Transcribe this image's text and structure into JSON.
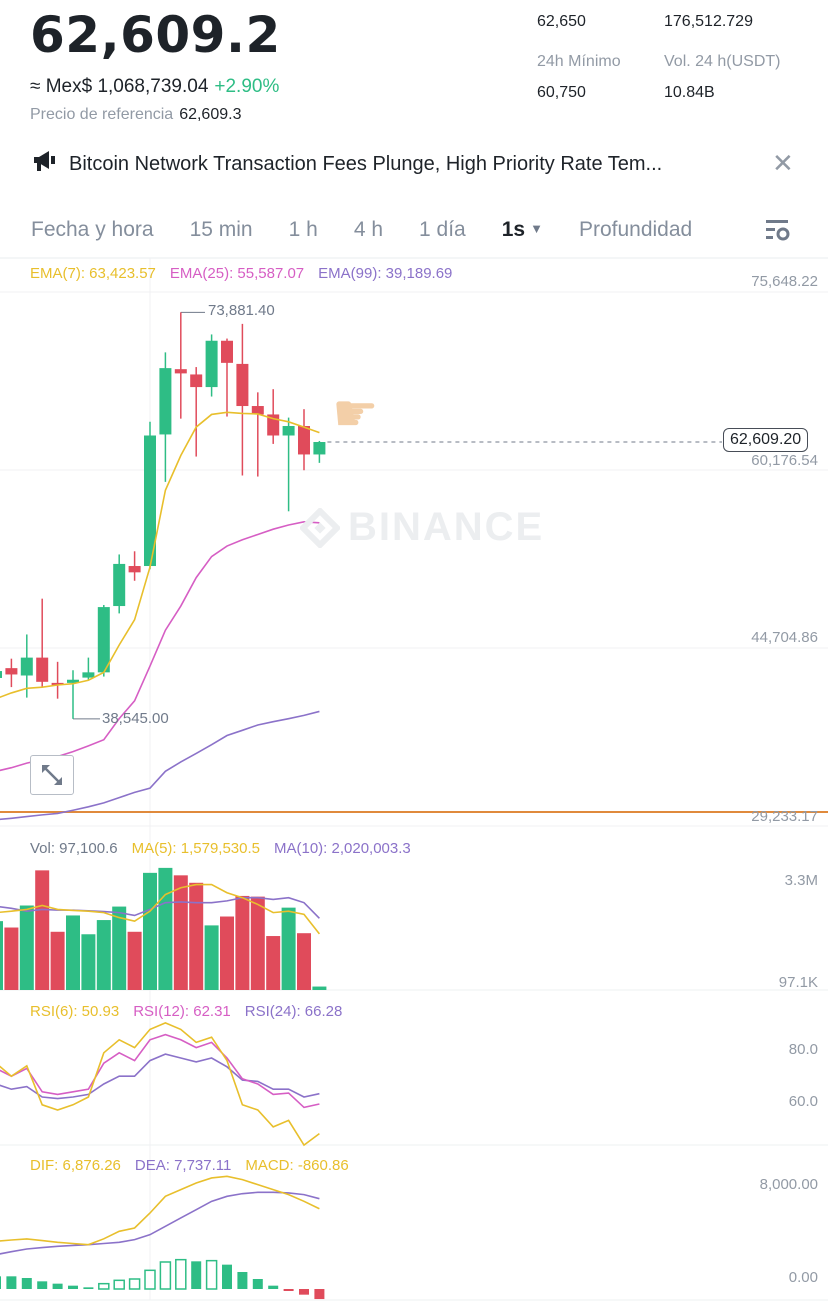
{
  "ticker": {
    "last_price": "62,609.2",
    "fiat_prefix": "≈ Mex$ 1,068,739.04",
    "change_pct": "+2.90%",
    "ref_label": "Precio de referencia",
    "ref_value": "62,609.3",
    "stats": {
      "high_value": "62,650",
      "vol_btc_value": "176,512.729",
      "low_label": "24h Mínimo",
      "vol_usdt_label": "Vol. 24 h(USDT)",
      "low_value": "60,750",
      "vol_usdt_value": "10.84B"
    }
  },
  "news": {
    "icon": "megaphone-icon",
    "text": "Bitcoin Network Transaction Fees Plunge, High Priority Rate Tem...",
    "close_icon": "close-icon"
  },
  "tabs": [
    {
      "label": "Fecha y hora"
    },
    {
      "label": "15 min"
    },
    {
      "label": "1 h"
    },
    {
      "label": "4 h"
    },
    {
      "label": "1 día"
    },
    {
      "label": "1s",
      "active": true
    },
    {
      "label": "Profundidad"
    }
  ],
  "colors": {
    "up": "#2ebd85",
    "down": "#e04b5b",
    "ema7": "#e8bf2c",
    "ema25": "#d65ec4",
    "ema99": "#8b72c9",
    "alert_line": "#e08a3c"
  },
  "chart_data": [
    {
      "type": "candlestick",
      "legend": {
        "ema7": "EMA(7): 63,423.57",
        "ema25": "EMA(25): 55,587.07",
        "ema99": "EMA(99): 39,189.69"
      },
      "y_ticks": [
        "75,648.22",
        "60,176.54",
        "44,704.86",
        "29,233.17"
      ],
      "y_tick_values": [
        75648.22,
        60176.54,
        44704.86,
        29233.17
      ],
      "high_label": "73,881.40",
      "low_label": "38,545.00",
      "last_price_label": "62,609.20",
      "last_price": 62609.2,
      "alert_line_price": 30450,
      "candles": [
        [
          42100,
          42700,
          43300,
          41500
        ],
        [
          42954,
          42405,
          43777,
          41307
        ],
        [
          42314,
          43869,
          45882,
          40392
        ],
        [
          43869,
          41765,
          48993,
          41307
        ],
        [
          41673,
          41490,
          43503,
          40300
        ],
        [
          41673,
          41947,
          42771,
          38545
        ],
        [
          42131,
          42588,
          43869,
          41947
        ],
        [
          42588,
          48261,
          48444,
          42222
        ],
        [
          48352,
          52013,
          52836,
          47712
        ],
        [
          51830,
          51281,
          53111,
          50548
        ],
        [
          51830,
          63175,
          64365,
          51555
        ],
        [
          63267,
          69032,
          70404,
          59149
        ],
        [
          68940,
          68574,
          73881.4,
          64640
        ],
        [
          68482,
          67384,
          69123,
          61345
        ],
        [
          67384,
          71411,
          71960,
          66561
        ],
        [
          71411,
          69489,
          71600,
          64822
        ],
        [
          69398,
          65737,
          72874,
          59698
        ],
        [
          65737,
          65005,
          66927,
          59607
        ],
        [
          65005,
          63175,
          67201,
          62444
        ],
        [
          63175,
          64000,
          64731,
          56587
        ],
        [
          64000,
          61528,
          65463,
          60156
        ],
        [
          61528,
          62609.2,
          62700,
          60797
        ]
      ],
      "ema7": [
        40300,
        40800,
        41200,
        41300,
        41490,
        41600,
        41900,
        42588,
        44967,
        47163,
        51738,
        58417,
        61437,
        63907,
        65005,
        65188,
        65096,
        65050,
        64640,
        64365,
        63907,
        63423.57
      ],
      "ema25": [
        33987,
        34300,
        34700,
        35000,
        35268,
        35700,
        36200,
        36733,
        38563,
        40117,
        43137,
        46248,
        48352,
        50823,
        52653,
        53568,
        54117,
        54574,
        55032,
        55398,
        55672,
        55587.07
      ],
      "ema99": [
        29778,
        29900,
        30050,
        30200,
        30327,
        30600,
        30900,
        31242,
        31700,
        32157,
        32523,
        33987,
        34800,
        35543,
        36300,
        37099,
        37550,
        38014,
        38300,
        38563,
        38850,
        39189.69
      ]
    },
    {
      "type": "bar",
      "legend": {
        "vol": "Vol: 97,100.6",
        "ma5": "MA(5): 1,579,530.5",
        "ma10": "MA(10): 2,020,003.3"
      },
      "y_ticks": [
        "3.3M",
        "97.1K"
      ],
      "values": [
        1940000,
        1760000,
        2380000,
        3370000,
        1640000,
        2100000,
        1570000,
        1970000,
        2350000,
        1640000,
        3300000,
        3440000,
        3230000,
        3020000,
        1820000,
        2070000,
        2650000,
        2630000,
        1520000,
        2320000,
        1600000,
        97100.6
      ],
      "ma5": [
        2180000,
        2220000,
        2270000,
        2380000,
        2270000,
        2240000,
        2220000,
        2180000,
        2040000,
        1940000,
        2220000,
        2690000,
        2880000,
        2970000,
        2970000,
        2740000,
        2600000,
        2410000,
        2180000,
        2220000,
        2130000,
        1579530.5
      ],
      "ma10": [
        2360000,
        2300000,
        2220000,
        2270000,
        2250000,
        2250000,
        2230000,
        2210000,
        2180000,
        2100000,
        2270000,
        2460000,
        2480000,
        2460000,
        2460000,
        2510000,
        2600000,
        2600000,
        2550000,
        2600000,
        2460000,
        2020003.3
      ]
    },
    {
      "type": "line",
      "legend": {
        "rsi6": "RSI(6): 50.93",
        "rsi12": "RSI(12): 62.31",
        "rsi24": "RSI(24): 66.28"
      },
      "y_ticks": [
        "80.0",
        "60.0"
      ],
      "rsi6": [
        78,
        73,
        77,
        62,
        60,
        62,
        65,
        82,
        87,
        84,
        91,
        93.5,
        91,
        86,
        88,
        79,
        62,
        60,
        53.5,
        56,
        46.5,
        50.93
      ],
      "rsi12": [
        76,
        73,
        76,
        67,
        66,
        67,
        68,
        78,
        82,
        79,
        87,
        89,
        87,
        84,
        86,
        80,
        72,
        70,
        66,
        66.5,
        61,
        62.31
      ],
      "rsi24": [
        70,
        68,
        69,
        65,
        64.4,
        65,
        66,
        70,
        73,
        73,
        79,
        81.5,
        80,
        78.5,
        80,
        76.6,
        71.5,
        71,
        68,
        68,
        65,
        66.28
      ]
    },
    {
      "type": "line+bar",
      "legend": {
        "dif": "DIF: 6,876.26",
        "dea": "DEA: 7,737.11",
        "macd": "MACD: -860.86"
      },
      "y_ticks": [
        "8,000.00",
        "0.00"
      ],
      "dif": [
        4086,
        4200,
        4286,
        4150,
        4000,
        3900,
        3800,
        4300,
        4943,
        5229,
        6514,
        7943,
        8514,
        9086,
        9514,
        9657,
        9371,
        8943,
        8514,
        8086,
        7514,
        6876.26
      ],
      "dea": [
        2943,
        3200,
        3429,
        3550,
        3657,
        3730,
        3800,
        3900,
        4000,
        4229,
        4657,
        5371,
        6086,
        6800,
        7514,
        7943,
        8171,
        8286,
        8286,
        8229,
        8086,
        7737.11
      ],
      "macd": [
        1086,
        1086,
        943,
        657,
        457,
        286,
        143,
        457,
        743,
        857,
        1600,
        2314,
        2514,
        2371,
        2429,
        2086,
        1457,
        857,
        286,
        -171,
        -486,
        -860.86
      ]
    }
  ],
  "watermark": "BINANCE",
  "icons": {
    "expand": "expand-icon",
    "settings": "chart-settings-icon",
    "pointer": "pointing-hand-icon"
  }
}
